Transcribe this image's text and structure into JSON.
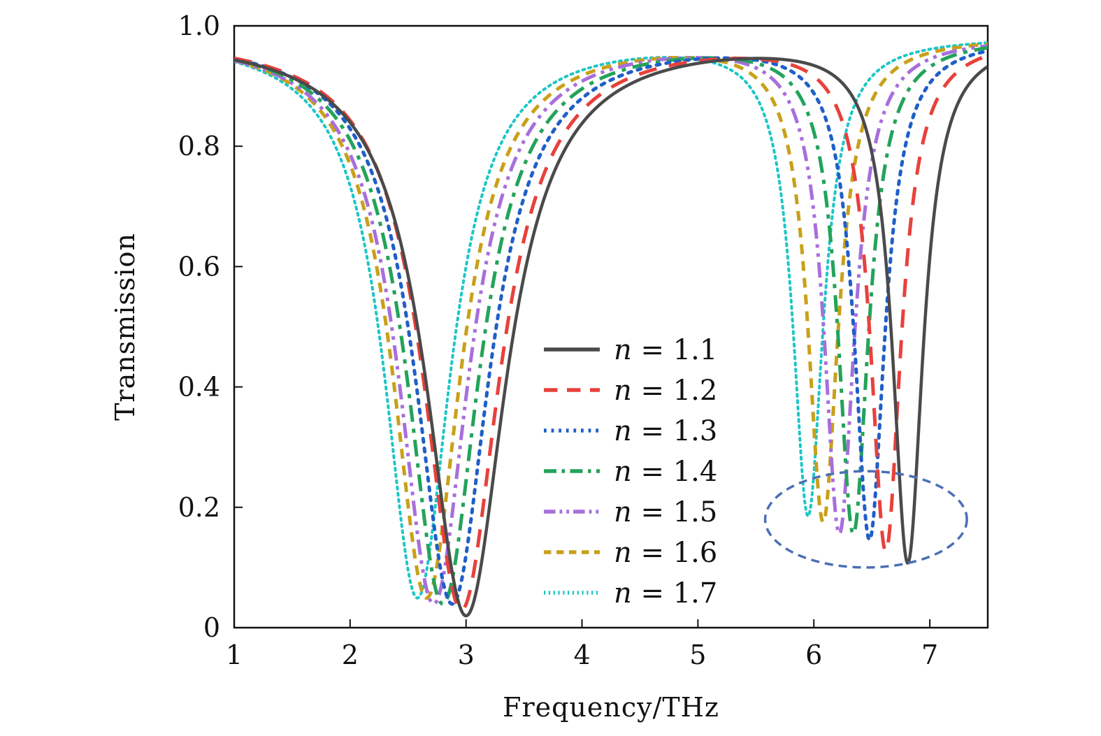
{
  "chart_data": {
    "type": "line",
    "xlabel": "Frequency/THz",
    "ylabel": "Transmission",
    "xlim": [
      1,
      7.5
    ],
    "ylim": [
      0,
      1.0
    ],
    "xticks": [
      "1",
      "2",
      "3",
      "4",
      "5",
      "6",
      "7"
    ],
    "yticks": [
      "0",
      "0.2",
      "0.4",
      "0.6",
      "0.8",
      "1.0"
    ],
    "legend_position": "center-right",
    "legend_prefix": "n",
    "series": [
      {
        "name": "1.1",
        "color": "#4a4a4a",
        "dash": "solid",
        "dip1": {
          "f": 3.0,
          "T": 0.02,
          "w": 0.42
        },
        "dip2": {
          "f": 6.81,
          "T": 0.11,
          "w": 0.16
        }
      },
      {
        "name": "1.2",
        "color": "#e8413c",
        "dash": "dashed",
        "dip1": {
          "f": 2.96,
          "T": 0.03,
          "w": 0.4
        },
        "dip2": {
          "f": 6.62,
          "T": 0.13,
          "w": 0.16
        }
      },
      {
        "name": "1.3",
        "color": "#1f5fc8",
        "dash": "dotted",
        "dip1": {
          "f": 2.88,
          "T": 0.04,
          "w": 0.39
        },
        "dip2": {
          "f": 6.48,
          "T": 0.15,
          "w": 0.16
        }
      },
      {
        "name": "1.4",
        "color": "#23a35a",
        "dash": "dashdot",
        "dip1": {
          "f": 2.8,
          "T": 0.04,
          "w": 0.38
        },
        "dip2": {
          "f": 6.34,
          "T": 0.16,
          "w": 0.16
        }
      },
      {
        "name": "1.5",
        "color": "#a86fdb",
        "dash": "dashdotdot",
        "dip1": {
          "f": 2.72,
          "T": 0.04,
          "w": 0.37
        },
        "dip2": {
          "f": 6.22,
          "T": 0.16,
          "w": 0.16
        }
      },
      {
        "name": "1.6",
        "color": "#c9a01a",
        "dash": "shortdash",
        "dip1": {
          "f": 2.66,
          "T": 0.05,
          "w": 0.36
        },
        "dip2": {
          "f": 6.08,
          "T": 0.18,
          "w": 0.16
        }
      },
      {
        "name": "1.7",
        "color": "#1cc6c6",
        "dash": "densedot",
        "dip1": {
          "f": 2.58,
          "T": 0.05,
          "w": 0.35
        },
        "dip2": {
          "f": 5.95,
          "T": 0.19,
          "w": 0.16
        }
      }
    ],
    "annotations": [
      {
        "type": "dashed-ellipse",
        "color": "#4a6fb5",
        "center": {
          "x": 6.45,
          "y": 0.18
        },
        "rx": 0.87,
        "ry": 0.08
      }
    ]
  }
}
